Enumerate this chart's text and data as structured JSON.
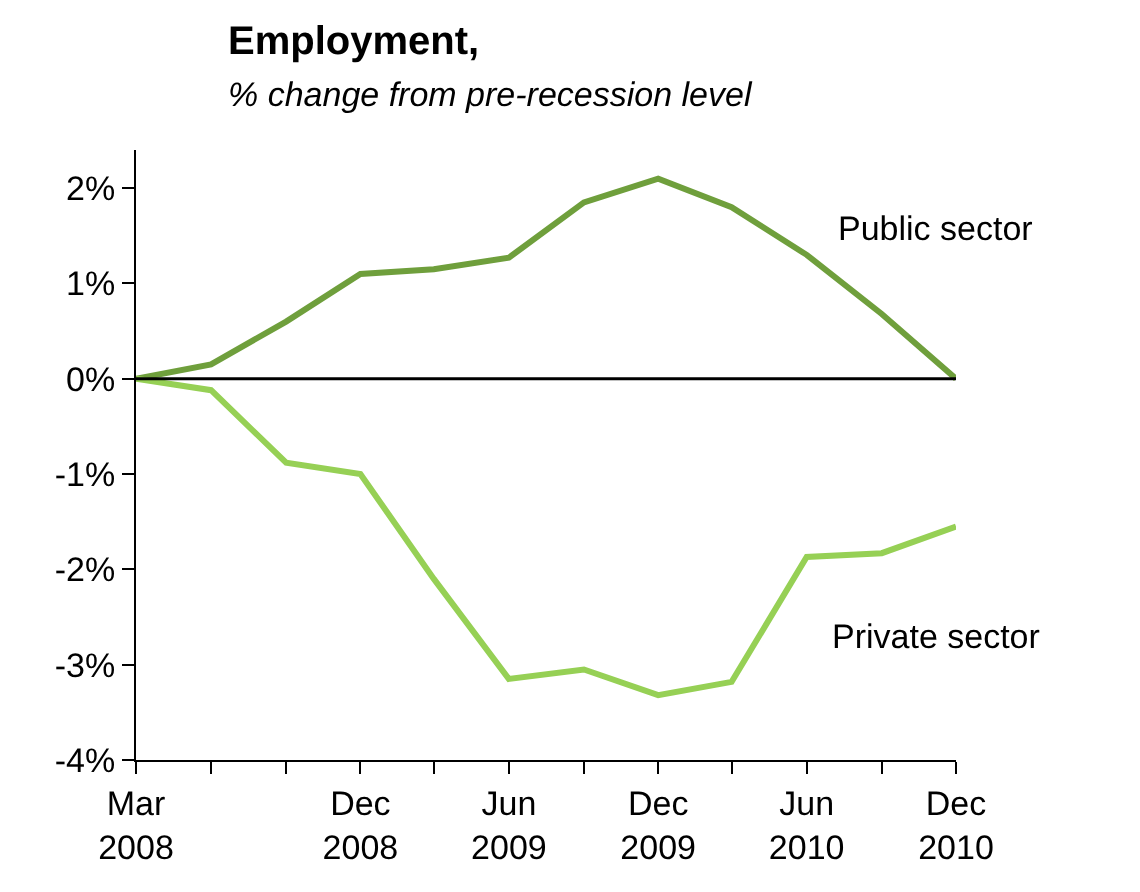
{
  "chart_data": {
    "type": "line",
    "title": "Employment,",
    "subtitle": "% change from pre-recession level",
    "x": [
      "2008-03",
      "2008-06",
      "2008-09",
      "2008-12",
      "2009-03",
      "2009-06",
      "2009-09",
      "2009-12",
      "2010-03",
      "2010-06",
      "2010-09",
      "2010-12"
    ],
    "series": [
      {
        "name": "Public sector",
        "color": "#6f9f3c",
        "values": [
          0,
          0.15,
          0.6,
          1.1,
          1.15,
          1.27,
          1.85,
          2.1,
          1.8,
          1.3,
          0.68,
          0
        ]
      },
      {
        "name": "Private sector",
        "color": "#96d055",
        "values": [
          0,
          -0.12,
          -0.88,
          -1.0,
          -2.1,
          -3.15,
          -3.05,
          -3.32,
          -3.18,
          -1.87,
          -1.83,
          -1.55
        ]
      }
    ],
    "ylim": [
      -4,
      2.4
    ],
    "yticks": [
      {
        "value": -4,
        "label": "-4%"
      },
      {
        "value": -3,
        "label": "-3%"
      },
      {
        "value": -2,
        "label": "-2%"
      },
      {
        "value": -1,
        "label": "-1%"
      },
      {
        "value": 0,
        "label": "0%"
      },
      {
        "value": 1,
        "label": "1%"
      },
      {
        "value": 2,
        "label": "2%"
      }
    ],
    "xlim": [
      "2008-03",
      "2010-12"
    ],
    "xticks": [
      {
        "value": "2008-03",
        "label": "Mar\n2008"
      },
      {
        "value": "2008-06",
        "label": null
      },
      {
        "value": "2008-09",
        "label": null
      },
      {
        "value": "2008-12",
        "label": "Dec\n2008"
      },
      {
        "value": "2009-03",
        "label": null
      },
      {
        "value": "2009-06",
        "label": "Jun\n2009"
      },
      {
        "value": "2009-09",
        "label": null
      },
      {
        "value": "2009-12",
        "label": "Dec\n2009"
      },
      {
        "value": "2010-03",
        "label": null
      },
      {
        "value": "2010-06",
        "label": "Jun\n2010"
      },
      {
        "value": "2010-09",
        "label": null
      },
      {
        "value": "2010-12",
        "label": "Dec\n2010"
      }
    ],
    "ref_lines": [
      {
        "axis": "y",
        "value": 0,
        "color": "#000000"
      }
    ],
    "legend": false,
    "marker": "none",
    "line_style": "solid"
  }
}
